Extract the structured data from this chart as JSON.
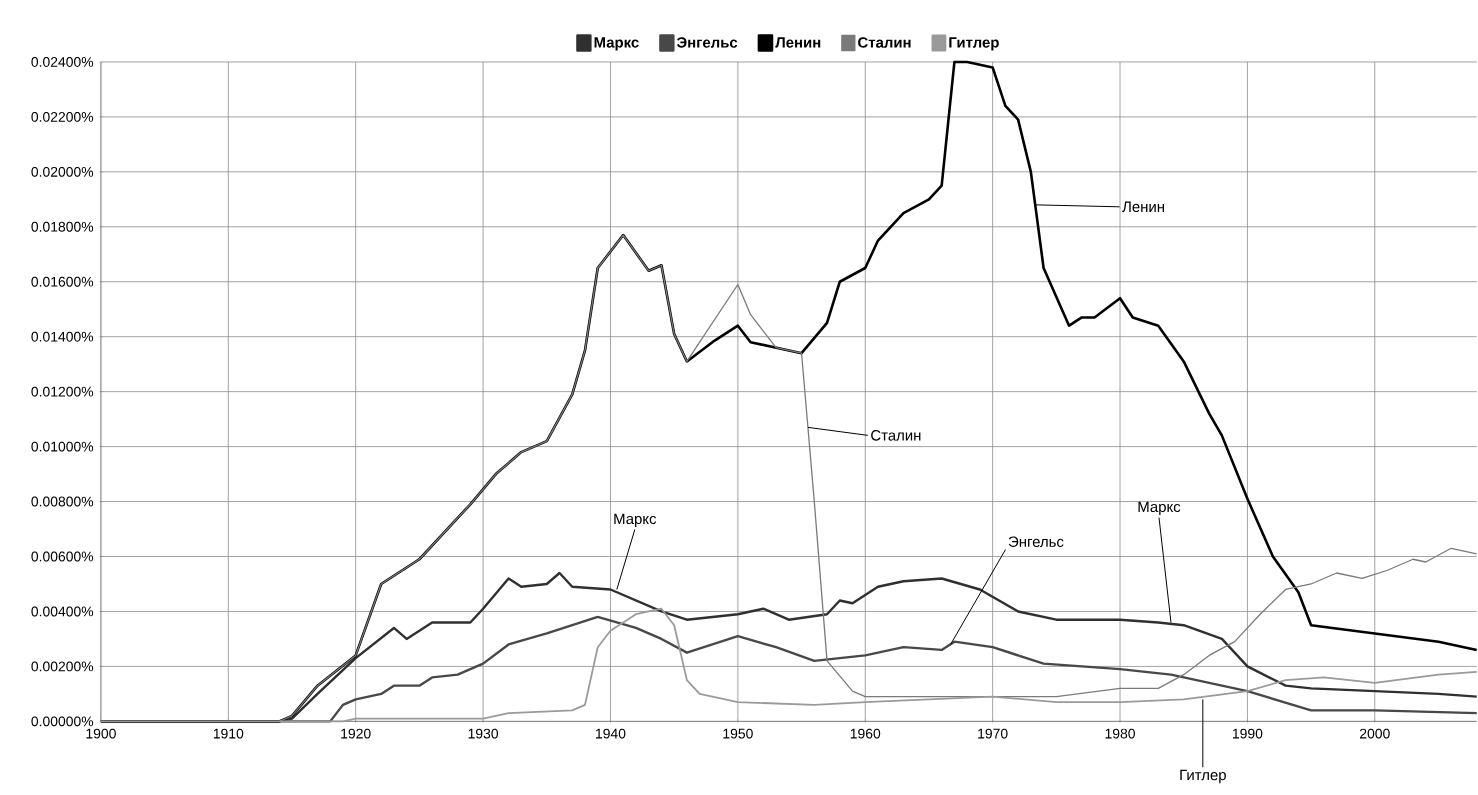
{
  "chart_data": {
    "type": "line",
    "xlim": [
      1900,
      2008
    ],
    "xticks": [
      1900,
      1910,
      1920,
      1930,
      1940,
      1950,
      1960,
      1970,
      1980,
      1990,
      2000
    ],
    "ylim": [
      0,
      0.024
    ],
    "yticks": [
      {
        "value": 0,
        "label": "0.00000%"
      },
      {
        "value": 0.002,
        "label": "0.00200%"
      },
      {
        "value": 0.004,
        "label": "0.00400%"
      },
      {
        "value": 0.006,
        "label": "0.00600%"
      },
      {
        "value": 0.008,
        "label": "0.00800%"
      },
      {
        "value": 0.01,
        "label": "0.01000%"
      },
      {
        "value": 0.012,
        "label": "0.01200%"
      },
      {
        "value": 0.014,
        "label": "0.01400%"
      },
      {
        "value": 0.016,
        "label": "0.01600%"
      },
      {
        "value": 0.018,
        "label": "0.01800%"
      },
      {
        "value": 0.02,
        "label": "0.02000%"
      },
      {
        "value": 0.022,
        "label": "0.02200%"
      },
      {
        "value": 0.024,
        "label": "0.02400%"
      }
    ],
    "grid": true,
    "legend": "top",
    "marker": "none",
    "line_style": "solid",
    "series": [
      {
        "name": "Маркс",
        "color": "#303030",
        "x": [
          1900,
          1914,
          1915,
          1917,
          1920,
          1923,
          1924,
          1926,
          1929,
          1930,
          1932,
          1933,
          1935,
          1936,
          1937,
          1940,
          1942,
          1944,
          1946,
          1950,
          1952,
          1954,
          1957,
          1958,
          1959,
          1961,
          1963,
          1966,
          1969,
          1972,
          1975,
          1980,
          1983,
          1985,
          1988,
          1990,
          1993,
          1995,
          2000,
          2005,
          2008
        ],
        "values": [
          0,
          0,
          0.0001,
          0.001,
          0.0023,
          0.0034,
          0.003,
          0.0036,
          0.0036,
          0.0041,
          0.0052,
          0.0049,
          0.005,
          0.0054,
          0.0049,
          0.0048,
          0.0044,
          0.004,
          0.0037,
          0.0039,
          0.0041,
          0.0037,
          0.0039,
          0.0044,
          0.0043,
          0.0049,
          0.0051,
          0.0052,
          0.0048,
          0.004,
          0.0037,
          0.0037,
          0.0036,
          0.0035,
          0.003,
          0.002,
          0.0013,
          0.0012,
          0.0011,
          0.001,
          0.0009
        ]
      },
      {
        "name": "Энгельс",
        "color": "#484848",
        "x": [
          1900,
          1918,
          1919,
          1920,
          1922,
          1923,
          1925,
          1926,
          1928,
          1930,
          1932,
          1935,
          1937,
          1939,
          1942,
          1944,
          1946,
          1948,
          1950,
          1953,
          1956,
          1960,
          1963,
          1966,
          1967,
          1970,
          1974,
          1980,
          1984,
          1987,
          1990,
          1995,
          2000,
          2008
        ],
        "values": [
          0,
          0,
          0.0006,
          0.0008,
          0.001,
          0.0013,
          0.0013,
          0.0016,
          0.0017,
          0.0021,
          0.0028,
          0.0032,
          0.0035,
          0.0038,
          0.0034,
          0.003,
          0.0025,
          0.0028,
          0.0031,
          0.0027,
          0.0022,
          0.0024,
          0.0027,
          0.0026,
          0.0029,
          0.0027,
          0.0021,
          0.0019,
          0.0017,
          0.0014,
          0.0011,
          0.0004,
          0.0004,
          0.0003
        ]
      },
      {
        "name": "Ленин",
        "color": "#000000",
        "x": [
          1900,
          1914,
          1915,
          1917,
          1920,
          1922,
          1925,
          1927,
          1929,
          1931,
          1933,
          1935,
          1937,
          1938,
          1939,
          1941,
          1943,
          1944,
          1945,
          1946,
          1948,
          1950,
          1951,
          1953,
          1955,
          1957,
          1958,
          1960,
          1961,
          1963,
          1965,
          1966,
          1967,
          1968,
          1970,
          1971,
          1972,
          1973,
          1974,
          1976,
          1977,
          1978,
          1980,
          1981,
          1983,
          1985,
          1987,
          1988,
          1990,
          1992,
          1994,
          1995,
          2000,
          2005,
          2008
        ],
        "values": [
          0,
          0,
          0.0002,
          0.0013,
          0.0024,
          0.005,
          0.0059,
          0.0069,
          0.0079,
          0.009,
          0.0098,
          0.0102,
          0.0119,
          0.0135,
          0.0165,
          0.0177,
          0.0164,
          0.0166,
          0.0141,
          0.0131,
          0.0138,
          0.0144,
          0.0138,
          0.0136,
          0.0134,
          0.0145,
          0.016,
          0.0165,
          0.0175,
          0.0185,
          0.019,
          0.0195,
          0.024,
          0.024,
          0.0238,
          0.0224,
          0.0219,
          0.02,
          0.0165,
          0.0144,
          0.0147,
          0.0147,
          0.0154,
          0.0147,
          0.0144,
          0.0131,
          0.0112,
          0.0104,
          0.0081,
          0.006,
          0.0047,
          0.0035,
          0.0032,
          0.0029,
          0.0026
        ]
      },
      {
        "name": "Сталин",
        "color": "#7a7a7a",
        "x": [
          1900,
          1914,
          1915,
          1917,
          1920,
          1922,
          1925,
          1927,
          1929,
          1931,
          1933,
          1935,
          1937,
          1938,
          1939,
          1941,
          1943,
          1944,
          1945,
          1946,
          1948,
          1950,
          1951,
          1953,
          1955,
          1956,
          1957,
          1959,
          1960,
          1975,
          1980,
          1983,
          1985,
          1987,
          1989,
          1991,
          1993,
          1995,
          1997,
          1999,
          2001,
          2003,
          2004,
          2006,
          2008
        ],
        "values": [
          0,
          0,
          0.0002,
          0.0013,
          0.0024,
          0.005,
          0.0059,
          0.0069,
          0.0079,
          0.009,
          0.0098,
          0.0102,
          0.0119,
          0.0135,
          0.0165,
          0.0177,
          0.0164,
          0.0166,
          0.0141,
          0.0131,
          0.0145,
          0.0159,
          0.0148,
          0.0136,
          0.0134,
          0.008,
          0.0022,
          0.0011,
          0.0009,
          0.0009,
          0.0012,
          0.0012,
          0.0017,
          0.0024,
          0.0029,
          0.0039,
          0.0048,
          0.005,
          0.0054,
          0.0052,
          0.0055,
          0.0059,
          0.0058,
          0.0063,
          0.0061
        ]
      },
      {
        "name": "Гитлер",
        "color": "#9a9a9a",
        "x": [
          1900,
          1919,
          1920,
          1930,
          1932,
          1937,
          1938,
          1939,
          1940,
          1942,
          1944,
          1945,
          1946,
          1947,
          1950,
          1956,
          1960,
          1965,
          1970,
          1975,
          1980,
          1985,
          1990,
          1993,
          1996,
          2000,
          2005,
          2008
        ],
        "values": [
          0,
          0,
          0.0001,
          0.0001,
          0.0003,
          0.0004,
          0.0006,
          0.0027,
          0.0033,
          0.0039,
          0.0041,
          0.0035,
          0.0015,
          0.001,
          0.0007,
          0.0006,
          0.0007,
          0.0008,
          0.0009,
          0.0007,
          0.0007,
          0.0008,
          0.0011,
          0.0015,
          0.0016,
          0.0014,
          0.0017,
          0.0018
        ]
      }
    ],
    "annotations": [
      {
        "text": "Ленин",
        "x": 1973.3,
        "y": 0.0188
      },
      {
        "text": "Сталин",
        "x": 1955.5,
        "y": 0.0107
      },
      {
        "text": "Маркс",
        "x": 1940.5,
        "y": 0.0048
      },
      {
        "text": "Энгельс",
        "x": 1966.7,
        "y": 0.0028
      },
      {
        "text": "Маркс",
        "x": 1984,
        "y": 0.0036
      },
      {
        "text": "Гитлер",
        "x": 1986.5,
        "y": 0.0008
      }
    ]
  }
}
